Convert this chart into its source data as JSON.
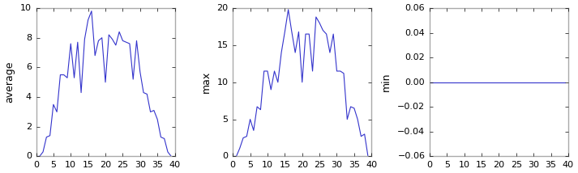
{
  "avg_ylabel": "average",
  "max_ylabel": "max",
  "min_ylabel": "min",
  "line_color": "#3333cc",
  "line_width": 0.8,
  "figsize": [
    7.13,
    2.14
  ],
  "dpi": 100,
  "avg_data": [
    0.0,
    0.0,
    0.3,
    1.3,
    1.4,
    3.5,
    3.0,
    5.5,
    5.5,
    5.3,
    7.6,
    5.3,
    7.7,
    4.3,
    7.9,
    9.2,
    9.8,
    6.8,
    7.8,
    8.0,
    5.0,
    8.2,
    7.9,
    7.5,
    8.4,
    7.8,
    7.7,
    7.6,
    5.2,
    7.8,
    5.7,
    4.3,
    4.2,
    3.0,
    3.1,
    2.5,
    1.3,
    1.2,
    0.3,
    0.0
  ],
  "max_data": [
    0.0,
    0.0,
    1.1,
    2.5,
    2.7,
    5.0,
    3.5,
    6.7,
    6.3,
    11.5,
    11.5,
    9.0,
    11.5,
    10.0,
    14.0,
    16.8,
    19.8,
    16.8,
    14.0,
    16.8,
    10.0,
    16.5,
    16.5,
    11.5,
    18.8,
    18.0,
    17.0,
    16.5,
    14.0,
    16.5,
    11.5,
    11.5,
    11.2,
    5.0,
    6.7,
    6.5,
    5.0,
    2.7,
    3.0,
    0.0
  ],
  "min_data": [
    0,
    0,
    0,
    0,
    0,
    0,
    0,
    0,
    0,
    0,
    0,
    0,
    0,
    0,
    0,
    0,
    0,
    0,
    0,
    0,
    0,
    0,
    0,
    0,
    0,
    0,
    0,
    0,
    0,
    0,
    0,
    0,
    0,
    0,
    0,
    0,
    0,
    0,
    0,
    0
  ]
}
